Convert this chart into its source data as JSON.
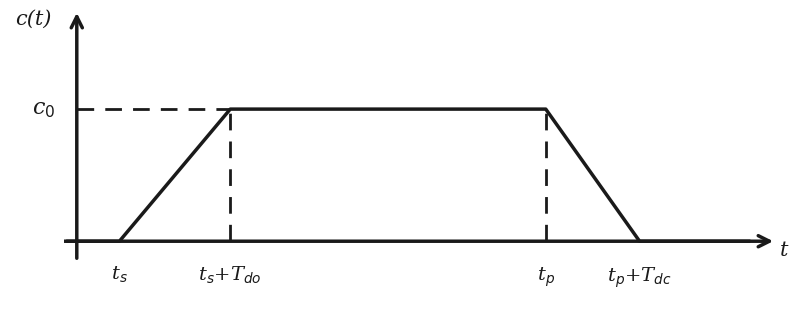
{
  "bg_color": "#ffffff",
  "line_color": "#1a1a1a",
  "dashed_color": "#1a1a1a",
  "ts": 0.5,
  "ts_Tdo": 1.8,
  "tp": 5.5,
  "tp_Tdc": 6.6,
  "c0": 1.0,
  "xlim": [
    -0.15,
    8.2
  ],
  "ylim": [
    -0.5,
    1.75
  ],
  "ylabel_text": "c(t)",
  "xlabel_text": "t",
  "c0_label": "c$_0$",
  "ts_label": "t$_s$",
  "ts_tdo_label": "t$_s$+T$_{do}$",
  "tp_label": "t$_p$",
  "tp_tdc_label": "t$_p$+T$_{dc}$",
  "line_width": 2.5,
  "dashed_lw": 2.0,
  "tick_label_fontsize": 14,
  "axis_label_fontsize": 15
}
